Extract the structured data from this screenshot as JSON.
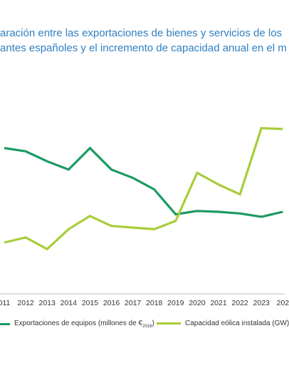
{
  "chart_data": {
    "type": "line",
    "title_lines": [
      "aración entre las exportaciones de bienes y servicios de los",
      "antes españoles y el incremento de capacidad anual en el m"
    ],
    "categories": [
      "011",
      "2012",
      "2013",
      "2014",
      "2015",
      "2016",
      "2017",
      "2018",
      "2019",
      "2020",
      "2021",
      "2022",
      "2023",
      "202"
    ],
    "series": [
      {
        "name": "Exportaciones de equipos (millones de €",
        "name_sub": "2016",
        "name_suffix": ")",
        "color": "#1a9a62",
        "values": [
          88,
          86,
          80,
          75,
          88,
          75,
          70,
          63,
          48,
          50,
          49.5,
          48.5,
          46.5,
          49.5
        ]
      },
      {
        "name": "Capacidad eólica instalada (GW)",
        "color": "#a8cd3a",
        "values": [
          31,
          34,
          27,
          39,
          47,
          41,
          40,
          39,
          44,
          73,
          66,
          60,
          100,
          99.5
        ]
      }
    ],
    "ylim": [
      0,
      130
    ],
    "grid": false,
    "legend_position": "bottom"
  }
}
